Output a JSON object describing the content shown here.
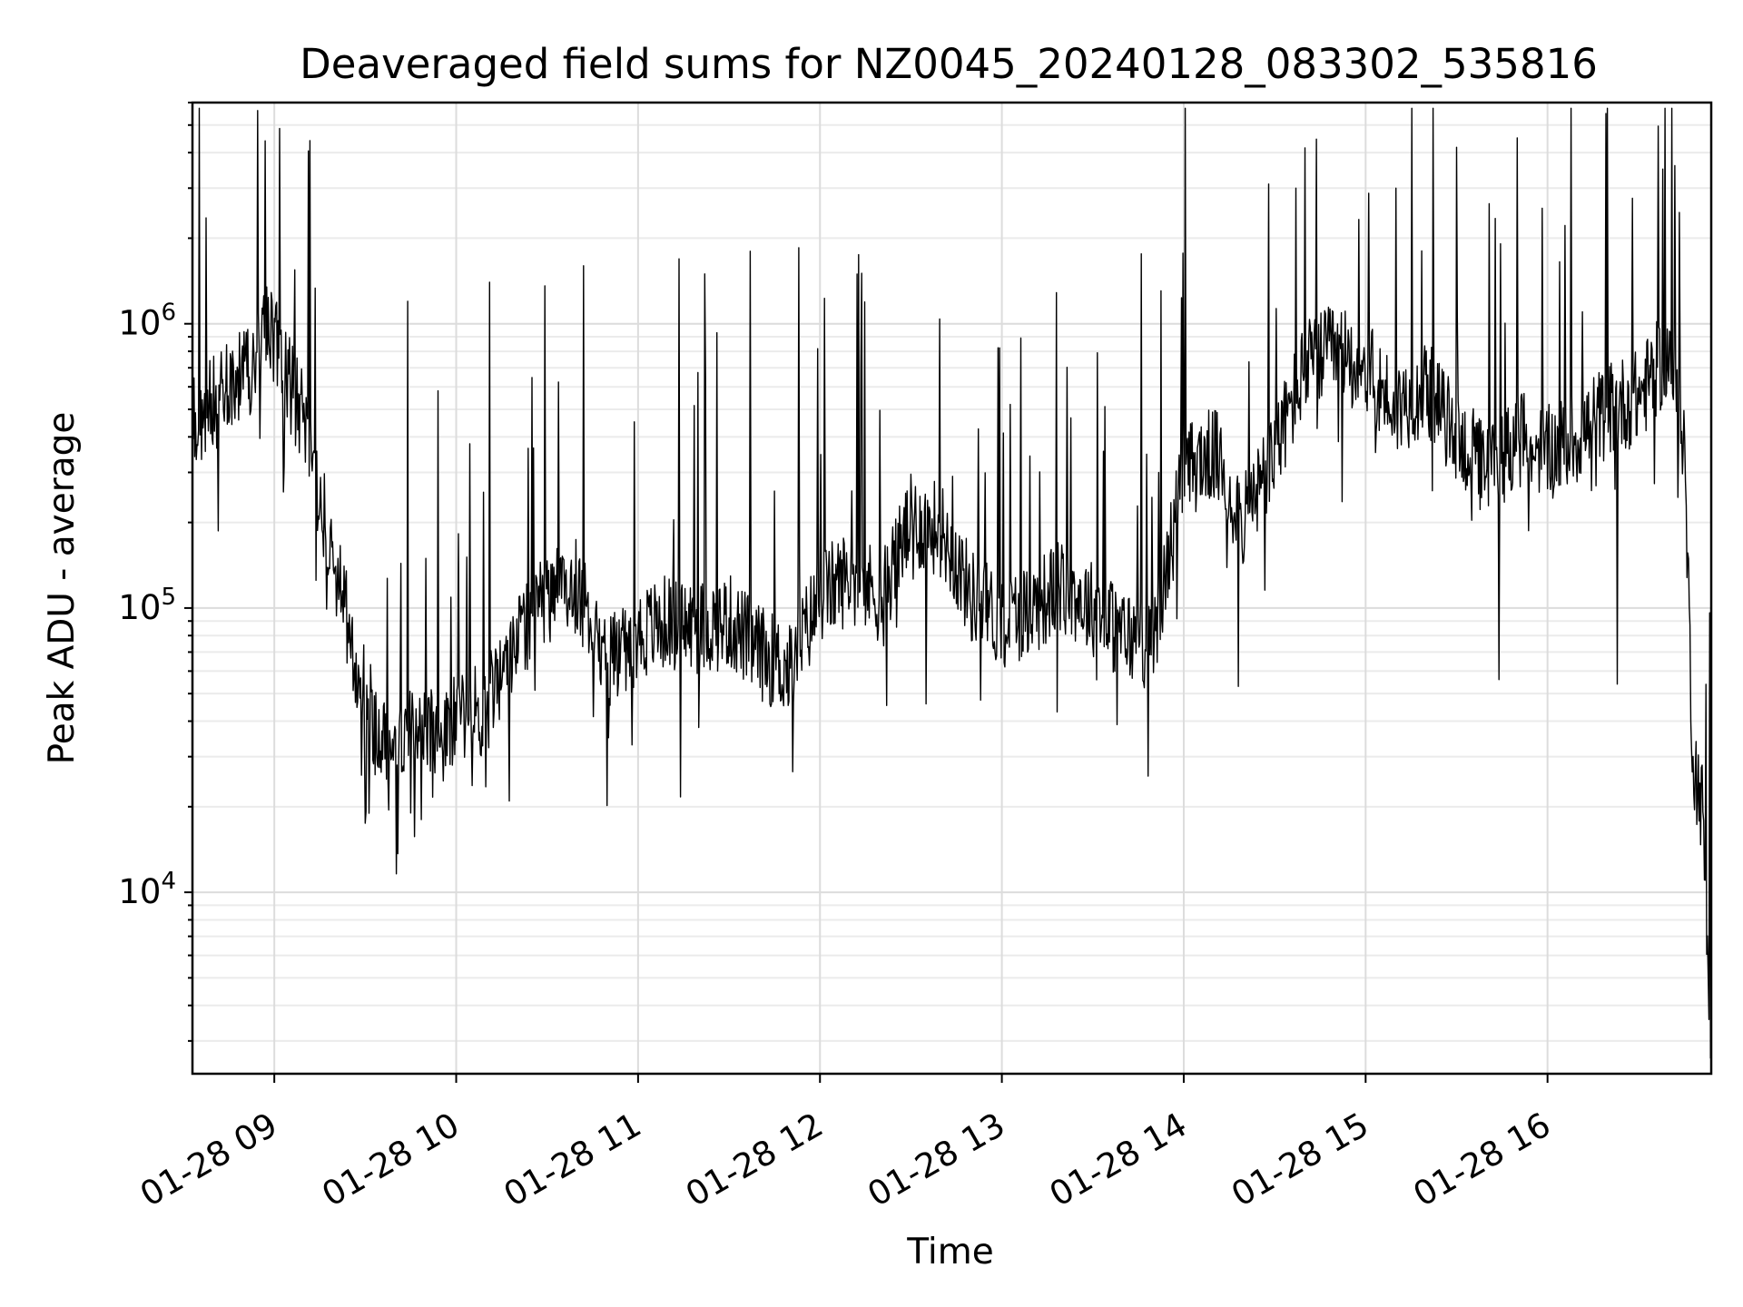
{
  "chart_data": {
    "type": "line",
    "title": "Deaveraged field sums for NZ0045_20240128_083302_535816",
    "xlabel": "Time",
    "ylabel": "Peak ADU - average",
    "x_scale": "time",
    "y_scale": "log",
    "xlim": [
      "2024-01-28 08:33",
      "2024-01-28 16:54"
    ],
    "ylim": [
      2300,
      6000000
    ],
    "grid": true,
    "legend": "none",
    "series_color": "#000000",
    "x_ticks": [
      {
        "label": "01-28 09",
        "t": "2024-01-28 09:00"
      },
      {
        "label": "01-28 10",
        "t": "2024-01-28 10:00"
      },
      {
        "label": "01-28 11",
        "t": "2024-01-28 11:00"
      },
      {
        "label": "01-28 12",
        "t": "2024-01-28 12:00"
      },
      {
        "label": "01-28 13",
        "t": "2024-01-28 13:00"
      },
      {
        "label": "01-28 14",
        "t": "2024-01-28 14:00"
      },
      {
        "label": "01-28 15",
        "t": "2024-01-28 15:00"
      },
      {
        "label": "01-28 16",
        "t": "2024-01-28 16:00"
      }
    ],
    "y_ticks": [
      {
        "base": "10",
        "exp": "4",
        "value": 10000
      },
      {
        "base": "10",
        "exp": "5",
        "value": 100000
      },
      {
        "base": "10",
        "exp": "6",
        "value": 1000000
      }
    ],
    "series": [
      {
        "x": [
          "2024-01-28 08:33",
          "2024-01-28 08:40",
          "2024-01-28 08:47",
          "2024-01-28 08:53",
          "2024-01-28 08:58",
          "2024-01-28 09:04",
          "2024-01-28 09:10",
          "2024-01-28 09:16",
          "2024-01-28 09:22",
          "2024-01-28 09:28",
          "2024-01-28 09:34",
          "2024-01-28 09:40",
          "2024-01-28 09:46",
          "2024-01-28 09:52",
          "2024-01-28 10:00",
          "2024-01-28 10:10",
          "2024-01-28 10:20",
          "2024-01-28 10:30",
          "2024-01-28 10:40",
          "2024-01-28 10:50",
          "2024-01-28 11:00",
          "2024-01-28 11:10",
          "2024-01-28 11:20",
          "2024-01-28 11:30",
          "2024-01-28 11:40",
          "2024-01-28 11:50",
          "2024-01-28 12:00",
          "2024-01-28 12:10",
          "2024-01-28 12:20",
          "2024-01-28 12:30",
          "2024-01-28 12:40",
          "2024-01-28 12:50",
          "2024-01-28 13:00",
          "2024-01-28 13:10",
          "2024-01-28 13:20",
          "2024-01-28 13:30",
          "2024-01-28 13:40",
          "2024-01-28 13:50",
          "2024-01-28 14:00",
          "2024-01-28 14:10",
          "2024-01-28 14:20",
          "2024-01-28 14:30",
          "2024-01-28 14:40",
          "2024-01-28 14:50",
          "2024-01-28 15:00",
          "2024-01-28 15:10",
          "2024-01-28 15:20",
          "2024-01-28 15:30",
          "2024-01-28 15:40",
          "2024-01-28 15:50",
          "2024-01-28 16:00",
          "2024-01-28 16:10",
          "2024-01-28 16:20",
          "2024-01-28 16:30",
          "2024-01-28 16:40",
          "2024-01-28 16:45",
          "2024-01-28 16:48",
          "2024-01-28 16:51",
          "2024-01-28 16:54"
        ],
        "y": [
          450000,
          520000,
          650000,
          700000,
          1000000,
          650000,
          450000,
          220000,
          110000,
          60000,
          35000,
          35000,
          40000,
          38000,
          40000,
          45000,
          80000,
          110000,
          120000,
          65000,
          80000,
          90000,
          85000,
          90000,
          70000,
          60000,
          110000,
          130000,
          110000,
          200000,
          190000,
          110000,
          90000,
          100000,
          120000,
          100000,
          80000,
          75000,
          300000,
          350000,
          200000,
          350000,
          700000,
          800000,
          700000,
          500000,
          600000,
          400000,
          300000,
          400000,
          350000,
          400000,
          500000,
          550000,
          800000,
          400000,
          30000,
          20000,
          3300
        ]
      }
    ],
    "spikes": [
      {
        "t": "2024-01-28 08:57",
        "y": 4400000
      },
      {
        "t": "2024-01-28 09:44",
        "y": 1200000
      },
      {
        "t": "2024-01-28 10:11",
        "y": 1400000
      },
      {
        "t": "2024-01-28 10:42",
        "y": 1600000
      },
      {
        "t": "2024-01-28 11:37",
        "y": 1800000
      },
      {
        "t": "2024-01-28 11:53",
        "y": 1850000
      },
      {
        "t": "2024-01-28 14:28",
        "y": 3100000
      },
      {
        "t": "2024-01-28 14:37",
        "y": 3000000
      },
      {
        "t": "2024-01-28 15:10",
        "y": 3000000
      },
      {
        "t": "2024-01-28 16:38",
        "y": 3500000
      },
      {
        "t": "2024-01-28 16:42",
        "y": 3600000
      }
    ],
    "dips": [
      {
        "t": "2024-01-28 09:30",
        "y": 17500
      },
      {
        "t": "2024-01-28 09:45",
        "y": 19000
      },
      {
        "t": "2024-01-28 11:20",
        "y": 38000
      },
      {
        "t": "2024-01-28 12:35",
        "y": 46000
      },
      {
        "t": "2024-01-28 14:18",
        "y": 53000
      },
      {
        "t": "2024-01-28 15:44",
        "y": 56000
      },
      {
        "t": "2024-01-28 16:23",
        "y": 54000
      }
    ]
  }
}
